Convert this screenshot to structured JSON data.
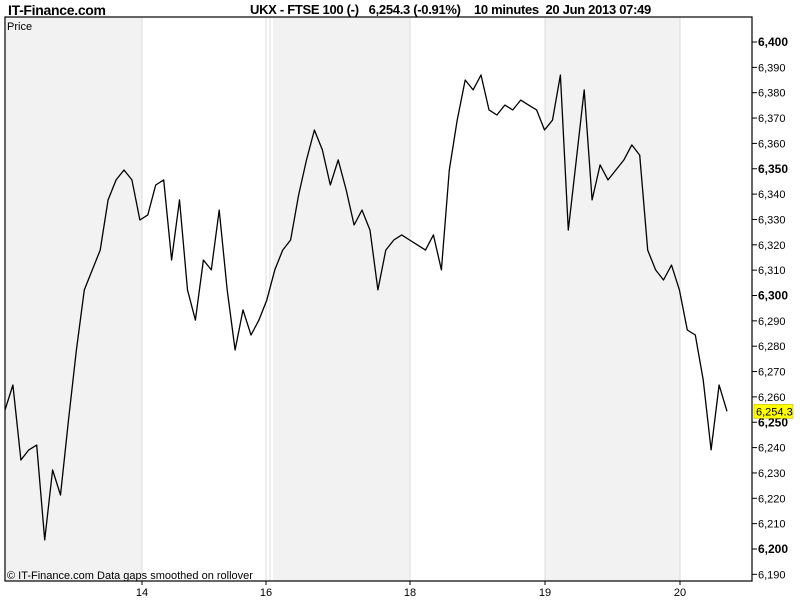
{
  "header": {
    "site": "IT-Finance.com",
    "title": "UKX - FTSE 100 (-)   6,254.3 (-0.91%)    10 minutes  20 Jun 2013 07:49"
  },
  "footer_note": "© IT-Finance.com  Data gaps smoothed on rollover",
  "colors": {
    "line": "#000000",
    "band": "#f2f2f2",
    "last_price_bg": "#ffff00"
  },
  "chart_data": {
    "type": "line",
    "title": "UKX - FTSE 100 (-)",
    "ylabel": "Price",
    "ylim": [
      6187,
      6410
    ],
    "yticks": [
      6190,
      6200,
      6210,
      6220,
      6230,
      6240,
      6250,
      6260,
      6270,
      6280,
      6290,
      6300,
      6310,
      6320,
      6330,
      6340,
      6350,
      6360,
      6370,
      6380,
      6390,
      6400
    ],
    "ytick_labels": [
      "6,190",
      "6,200",
      "6,210",
      "6,220",
      "6,230",
      "6,240",
      "6,250",
      "6,260",
      "6,270",
      "6,280",
      "6,290",
      "6,300",
      "6,310",
      "6,320",
      "6,330",
      "6,340",
      "6,350",
      "6,360",
      "6,370",
      "6,380",
      "6,390",
      "6,400"
    ],
    "xtick_labels": [
      "14",
      "16",
      "18",
      "19",
      "20"
    ],
    "last_price": 6254.3,
    "last_price_label": "6,254.3",
    "grid": "vertical day separators",
    "values": [
      6254.8,
      6264.7,
      6235.1,
      6239.1,
      6241,
      6203.6,
      6231.2,
      6221.3,
      6250.9,
      6278.5,
      6302.2,
      6310.1,
      6317.9,
      6337.7,
      6345.6,
      6349.5,
      6345.6,
      6329.8,
      6331.8,
      6343.6,
      6345.6,
      6314,
      6337.7,
      6302.2,
      6290.3,
      6314,
      6310.1,
      6333.7,
      6302.2,
      6278.5,
      6294.3,
      6284.4,
      6290.3,
      6298.2,
      6310.1,
      6317.9,
      6321.9,
      6339.6,
      6353.5,
      6365.3,
      6357.4,
      6343.6,
      6353.5,
      6341.6,
      6327.8,
      6333.7,
      6325.8,
      6302.2,
      6317.9,
      6321.9,
      6323.9,
      6321.9,
      6319.9,
      6317.9,
      6323.9,
      6310.1,
      6349.5,
      6369.2,
      6385,
      6381.1,
      6387,
      6373.2,
      6371.2,
      6375.1,
      6373.2,
      6377.1,
      6375.1,
      6373.2,
      6365.3,
      6369.2,
      6387,
      6325.8,
      6353.5,
      6381.1,
      6337.7,
      6351.5,
      6345.6,
      6349.5,
      6353.5,
      6359.4,
      6355.4,
      6317.9,
      6310.1,
      6306.1,
      6312,
      6302.2,
      6286.4,
      6284.4,
      6266.7,
      6239.1,
      6264.7,
      6254.3
    ]
  }
}
